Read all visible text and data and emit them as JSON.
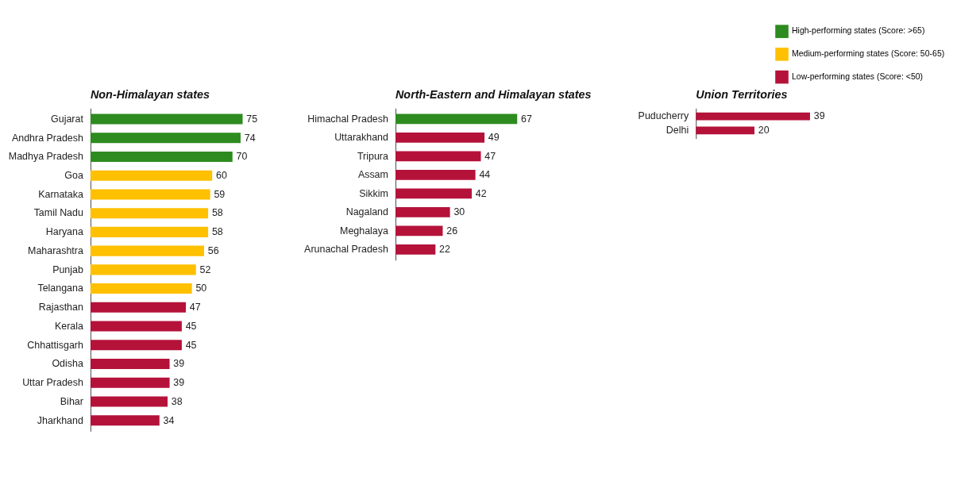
{
  "chart_data": [
    {
      "type": "bar",
      "orientation": "horizontal",
      "title": "Non-Himalayan states",
      "data_labels": true,
      "grid": false,
      "tick_labels": "y",
      "legend": "top right",
      "categories": [
        "Gujarat",
        "Andhra Pradesh",
        "Madhya Pradesh",
        "Goa",
        "Karnataka",
        "Tamil Nadu",
        "Haryana",
        "Maharashtra",
        "Punjab",
        "Telangana",
        "Rajasthan",
        "Kerala",
        "Chhattisgarh",
        "Odisha",
        "Uttar Pradesh",
        "Bihar",
        "Jharkhand"
      ],
      "series": [
        {
          "name": "High-performing states (Score: >65)",
          "color": "#2e8b1f",
          "values": [
            75,
            74,
            70,
            null,
            null,
            null,
            null,
            null,
            null,
            null,
            null,
            null,
            null,
            null,
            null,
            null,
            null
          ]
        },
        {
          "name": "Medium-performing states (Score: 50-65)",
          "color": "#ffc000",
          "values": [
            null,
            null,
            null,
            60,
            59,
            58,
            58,
            56,
            52,
            50,
            null,
            null,
            null,
            null,
            null,
            null,
            null
          ]
        },
        {
          "name": "Low-performing states (Score: <50)",
          "color": "#b5123a",
          "values": [
            null,
            null,
            null,
            null,
            null,
            null,
            null,
            null,
            null,
            null,
            47,
            45,
            45,
            39,
            39,
            38,
            34
          ]
        }
      ]
    },
    {
      "type": "bar",
      "orientation": "horizontal",
      "title": "North-Eastern and Himalayan states",
      "data_labels": true,
      "grid": false,
      "tick_labels": "y",
      "categories": [
        "Himachal Pradesh",
        "Uttarakhand",
        "Tripura",
        "Assam",
        "Sikkim",
        "Nagaland",
        "Meghalaya",
        "Arunachal Pradesh"
      ],
      "series": [
        {
          "name": "High-performing states (Score: >65)",
          "color": "#2e8b1f",
          "values": [
            67,
            null,
            null,
            null,
            null,
            null,
            null,
            null
          ]
        },
        {
          "name": "Low-performing states (Score: <50)",
          "color": "#b5123a",
          "values": [
            null,
            49,
            47,
            44,
            42,
            30,
            26,
            22
          ]
        }
      ]
    },
    {
      "type": "bar",
      "orientation": "horizontal",
      "title": "Union Territories",
      "data_labels": true,
      "grid": false,
      "tick_labels": "y",
      "categories": [
        "Puducherry",
        "Delhi"
      ],
      "series": [
        {
          "name": "Low-performing states (Score: <50)",
          "color": "#b5123a",
          "values": [
            39,
            20
          ]
        }
      ]
    }
  ]
}
